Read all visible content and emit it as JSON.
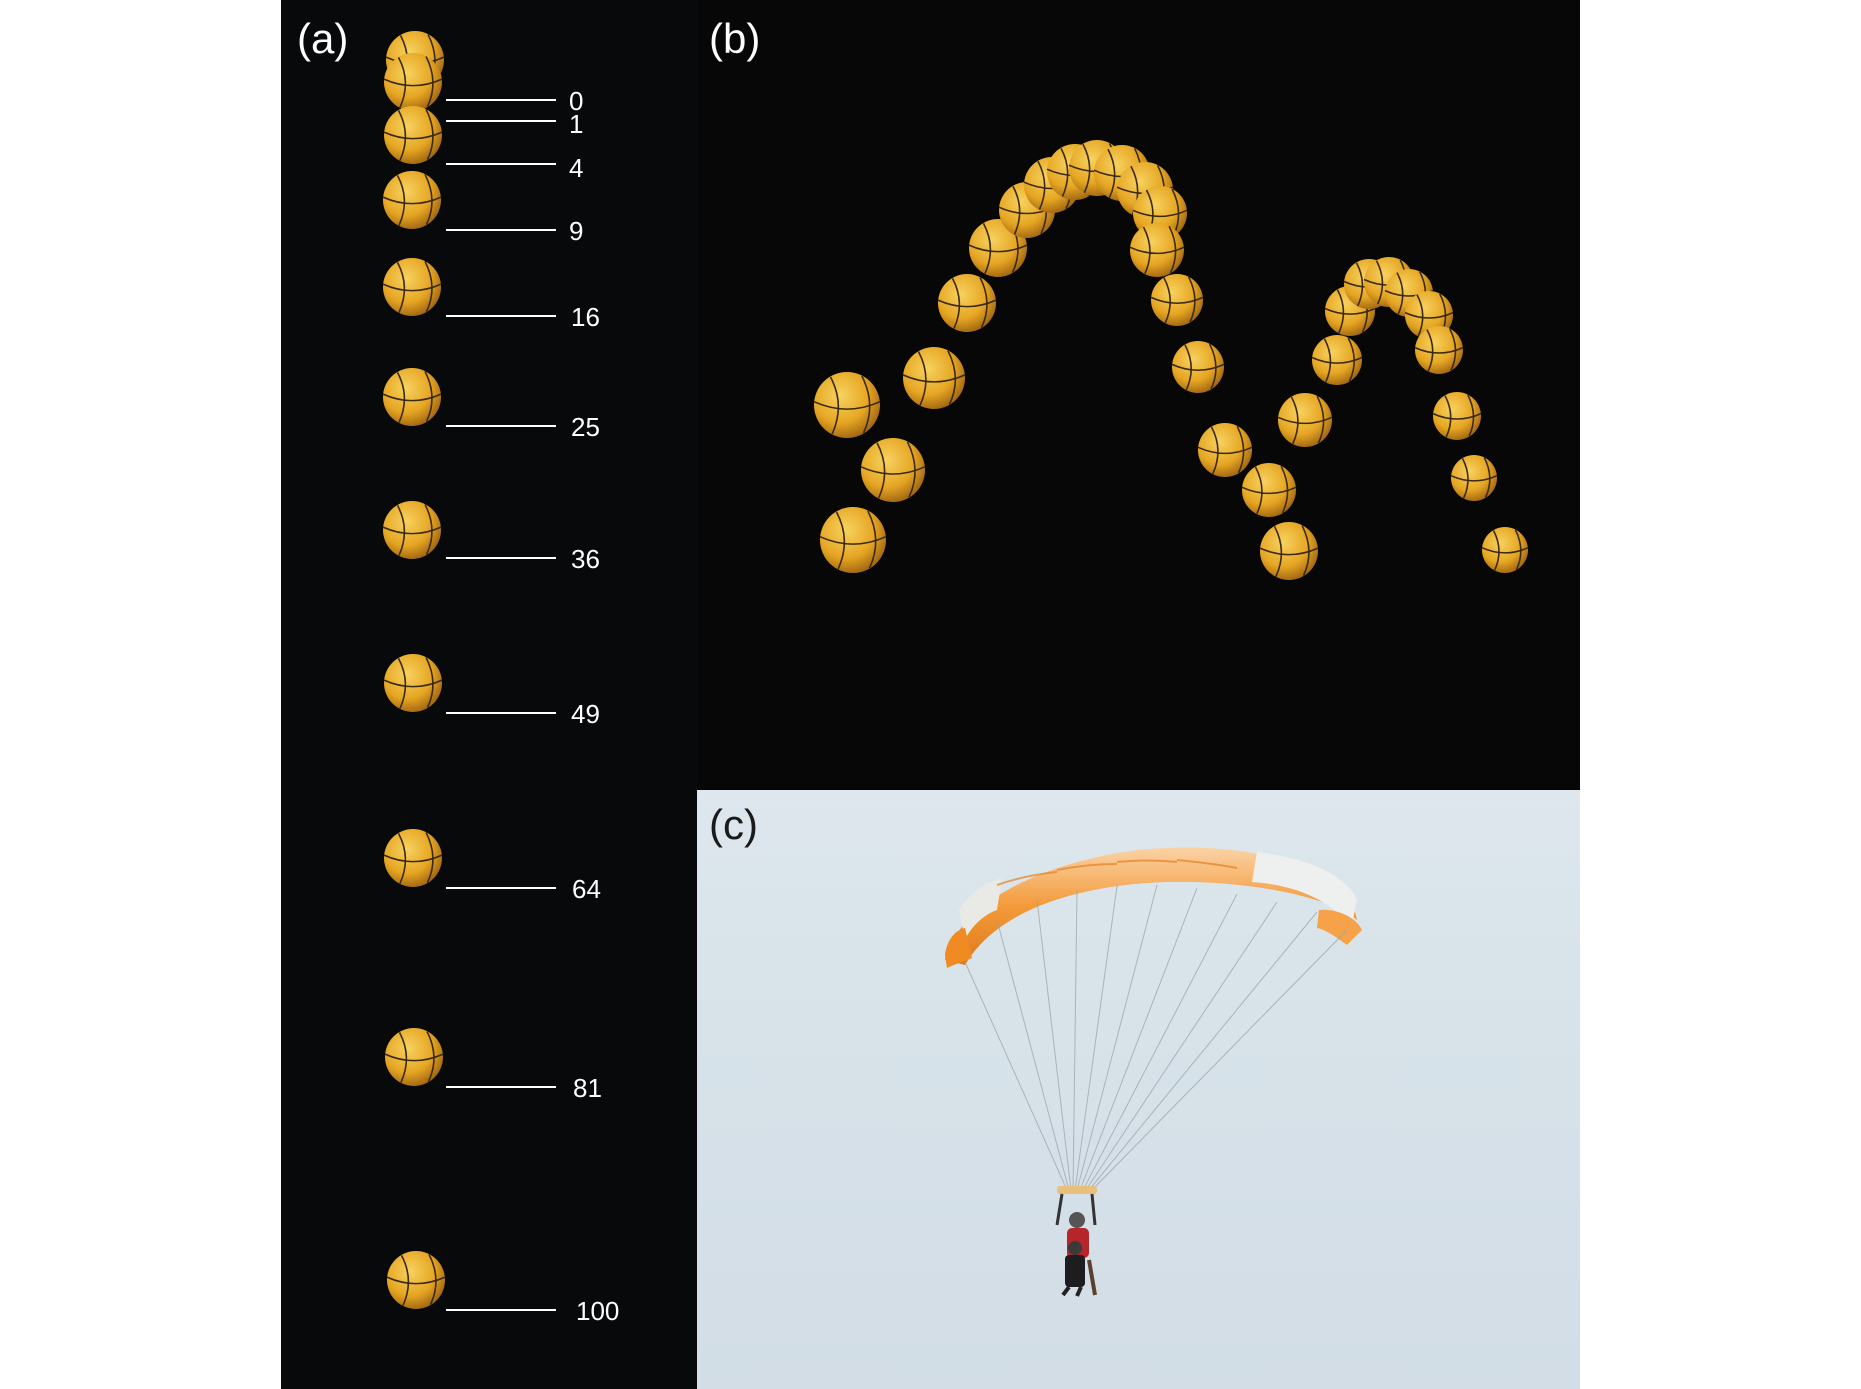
{
  "panels": {
    "a": {
      "label": "(a)"
    },
    "b": {
      "label": "(b)"
    },
    "c": {
      "label": "(c)"
    }
  },
  "falling_ball_marks": [
    "0",
    "1",
    "4",
    "9",
    "16",
    "25",
    "36",
    "49",
    "64",
    "81",
    "100"
  ],
  "colors": {
    "background_dark": "#07090b",
    "ball": "#e6a623",
    "ball_seam": "#3a2a12",
    "sky": "#d7e2e9",
    "canopy_orange": "#f39a3a",
    "canopy_white": "#eef0f0"
  }
}
